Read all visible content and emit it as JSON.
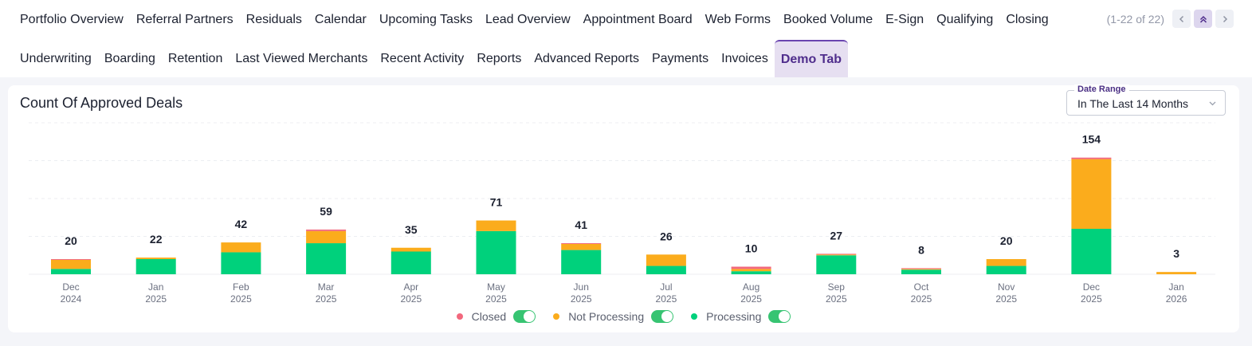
{
  "tabs": {
    "row1": [
      "Portfolio Overview",
      "Referral Partners",
      "Residuals",
      "Calendar",
      "Upcoming Tasks",
      "Lead Overview",
      "Appointment Board",
      "Web Forms",
      "Booked Volume",
      "E-Sign",
      "Qualifying",
      "Closing"
    ],
    "row2": [
      "Underwriting",
      "Boarding",
      "Retention",
      "Last Viewed Merchants",
      "Recent Activity",
      "Reports",
      "Advanced Reports",
      "Payments",
      "Invoices",
      "Demo Tab"
    ],
    "active": "Demo Tab"
  },
  "pager": {
    "count": "(1-22 of 22)"
  },
  "date_range": {
    "label": "Date Range",
    "value": "In The Last 14 Months"
  },
  "chart_data": {
    "type": "bar",
    "stacked": true,
    "title": "Count Of Approved Deals",
    "categories": [
      [
        "Dec",
        "2024"
      ],
      [
        "Jan",
        "2025"
      ],
      [
        "Feb",
        "2025"
      ],
      [
        "Mar",
        "2025"
      ],
      [
        "Apr",
        "2025"
      ],
      [
        "May",
        "2025"
      ],
      [
        "Jun",
        "2025"
      ],
      [
        "Jul",
        "2025"
      ],
      [
        "Aug",
        "2025"
      ],
      [
        "Sep",
        "2025"
      ],
      [
        "Oct",
        "2025"
      ],
      [
        "Nov",
        "2025"
      ],
      [
        "Dec",
        "2025"
      ],
      [
        "Jan",
        "2026"
      ]
    ],
    "totals": [
      20,
      22,
      42,
      59,
      35,
      71,
      41,
      26,
      10,
      27,
      8,
      20,
      154,
      3
    ],
    "series": [
      {
        "name": "Processing",
        "color": "#00d17c",
        "values": [
          7,
          20,
          29,
          41,
          30,
          57,
          32,
          11,
          4,
          25,
          6,
          11,
          60,
          0
        ]
      },
      {
        "name": "Not Processing",
        "color": "#fbac1c",
        "values": [
          12,
          2,
          13,
          16,
          5,
          14,
          8,
          15,
          3,
          1,
          1,
          9,
          92,
          3
        ]
      },
      {
        "name": "Closed",
        "color": "#f2687d",
        "values": [
          1,
          0,
          0,
          2,
          0,
          0,
          1,
          0,
          3,
          1,
          1,
          0,
          2,
          0
        ]
      }
    ],
    "legend_order": [
      "Closed",
      "Not Processing",
      "Processing"
    ],
    "ylim": [
      0,
      200
    ],
    "grid": true,
    "legend": "bottom"
  }
}
